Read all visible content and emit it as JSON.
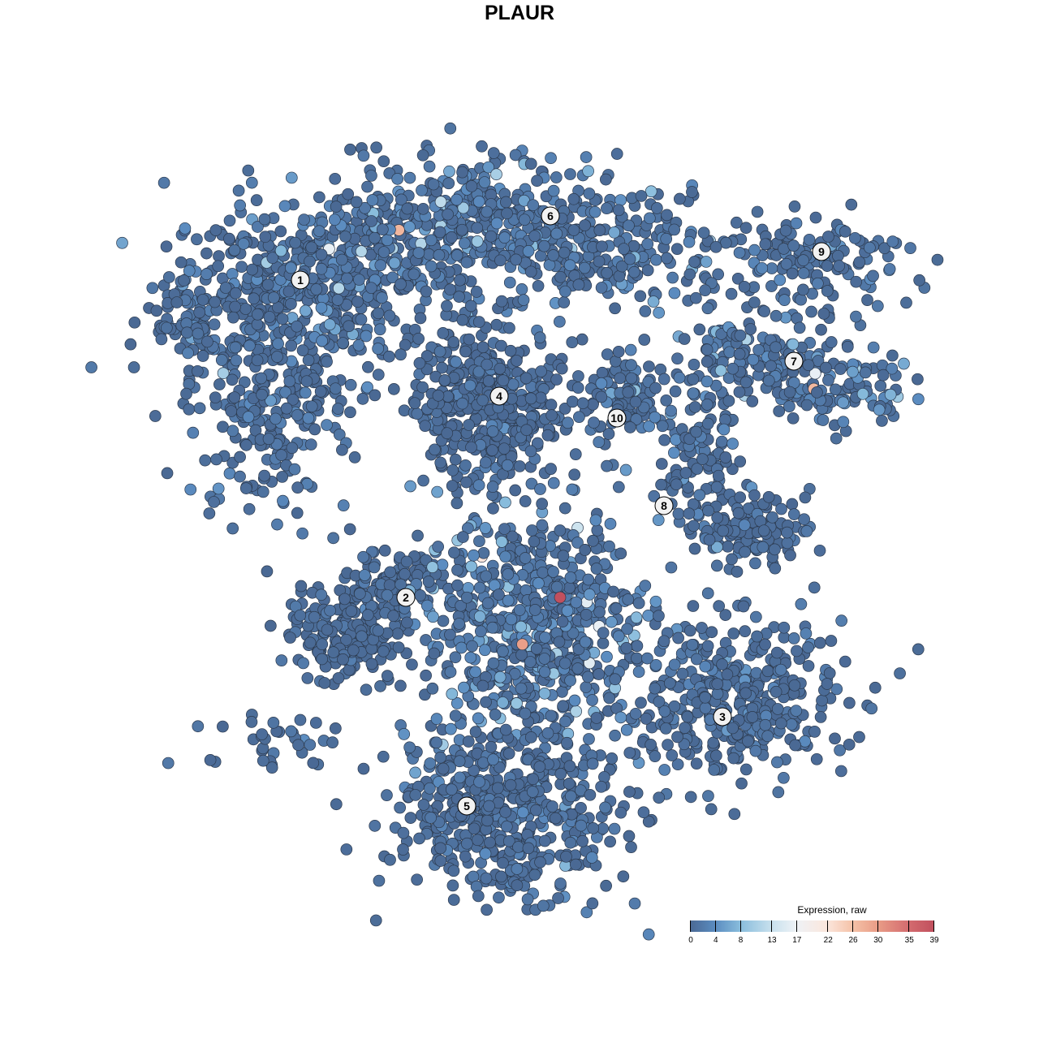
{
  "chart_data": {
    "type": "scatter",
    "title": "PLAUR",
    "xlabel": "",
    "ylabel": "",
    "axes_visible": false,
    "grid": false,
    "xlim": [
      -45,
      50
    ],
    "ylim": [
      -47,
      47
    ],
    "point_color_variable": "Expression, raw",
    "cluster_labels": [
      {
        "label": "1",
        "x": -27.0,
        "y": 29.5
      },
      {
        "label": "2",
        "x": -14.0,
        "y": -9.6
      },
      {
        "label": "3",
        "x": 25.0,
        "y": -24.3
      },
      {
        "label": "4",
        "x": -2.5,
        "y": 15.2
      },
      {
        "label": "5",
        "x": -6.5,
        "y": -35.3
      },
      {
        "label": "6",
        "x": 3.8,
        "y": 37.4
      },
      {
        "label": "7",
        "x": 33.8,
        "y": 19.5
      },
      {
        "label": "8",
        "x": 17.8,
        "y": 1.7
      },
      {
        "label": "9",
        "x": 37.2,
        "y": 33.0
      },
      {
        "label": "10",
        "x": 12.0,
        "y": 12.5
      }
    ],
    "point_groups": [
      {
        "cluster": "1",
        "cx": -29,
        "cy": 28,
        "sx": 7,
        "sy": 6,
        "n": 380,
        "mean_expr": 3
      },
      {
        "cluster": "1",
        "cx": -31,
        "cy": 14,
        "sx": 5,
        "sy": 7,
        "n": 220,
        "mean_expr": 2
      },
      {
        "cluster": "1",
        "cx": -16,
        "cy": 32,
        "sx": 6,
        "sy": 5,
        "n": 220,
        "mean_expr": 3
      },
      {
        "cluster": "1",
        "cx": -40,
        "cy": 24,
        "sx": 3,
        "sy": 4,
        "n": 70,
        "mean_expr": 2
      },
      {
        "cluster": "6",
        "cx": -4,
        "cy": 37,
        "sx": 8,
        "sy": 4,
        "n": 300,
        "mean_expr": 4
      },
      {
        "cluster": "6",
        "cx": 12,
        "cy": 33,
        "sx": 7,
        "sy": 4,
        "n": 200,
        "mean_expr": 3
      },
      {
        "cluster": "4",
        "cx": -4,
        "cy": 14,
        "sx": 4.5,
        "sy": 5,
        "n": 420,
        "mean_expr": 1
      },
      {
        "cluster": "9",
        "cx": 36,
        "cy": 32,
        "sx": 6,
        "sy": 2.5,
        "n": 130,
        "mean_expr": 2
      },
      {
        "cluster": "7",
        "cx": 30,
        "cy": 20,
        "sx": 6,
        "sy": 3,
        "n": 170,
        "mean_expr": 3
      },
      {
        "cluster": "7",
        "cx": 40,
        "cy": 16,
        "sx": 4,
        "sy": 2.5,
        "n": 90,
        "mean_expr": 4
      },
      {
        "cluster": "10",
        "cx": 12,
        "cy": 15,
        "sx": 3,
        "sy": 3,
        "n": 110,
        "mean_expr": 2
      },
      {
        "cluster": "8",
        "cx": 22,
        "cy": 7,
        "sx": 2.5,
        "sy": 4,
        "n": 110,
        "mean_expr": 2
      },
      {
        "cluster": "8",
        "cx": 29,
        "cy": -1,
        "sx": 3.5,
        "sy": 2,
        "n": 120,
        "mean_expr": 2
      },
      {
        "cluster": "2",
        "cx": -21,
        "cy": -14,
        "sx": 4,
        "sy": 3,
        "n": 190,
        "mean_expr": 1
      },
      {
        "cluster": "2",
        "cx": -17,
        "cy": -8,
        "sx": 4,
        "sy": 2,
        "n": 90,
        "mean_expr": 1
      },
      {
        "cluster": "2",
        "cx": -30,
        "cy": -27,
        "sx": 4,
        "sy": 2,
        "n": 35,
        "mean_expr": 2
      },
      {
        "cluster": "",
        "cx": 2,
        "cy": -13,
        "sx": 7,
        "sy": 7,
        "n": 650,
        "mean_expr": 5
      },
      {
        "cluster": "3",
        "cx": 26,
        "cy": -22,
        "sx": 7,
        "sy": 5,
        "n": 400,
        "mean_expr": 2
      },
      {
        "cluster": "5",
        "cx": -2,
        "cy": -36,
        "sx": 7,
        "sy": 5,
        "n": 520,
        "mean_expr": 2
      }
    ],
    "max_point": {
      "x": 5.0,
      "y": -9.6,
      "expr": 39
    },
    "colorbar": {
      "title": "Expression, raw",
      "min": 0,
      "max": 39,
      "ticks": [
        "0",
        "4",
        "8",
        "13",
        "17",
        "22",
        "26",
        "30",
        "35",
        "39"
      ],
      "tick_values": [
        0,
        4,
        8,
        13,
        17,
        22,
        26,
        30,
        35,
        39
      ],
      "colors": [
        "#4a6994",
        "#5b8cc0",
        "#88bcdc",
        "#c7e0ed",
        "#eef2f6",
        "#fbe6dc",
        "#f5c2a8",
        "#e99d87",
        "#d46c6f",
        "#c1505e"
      ]
    }
  }
}
